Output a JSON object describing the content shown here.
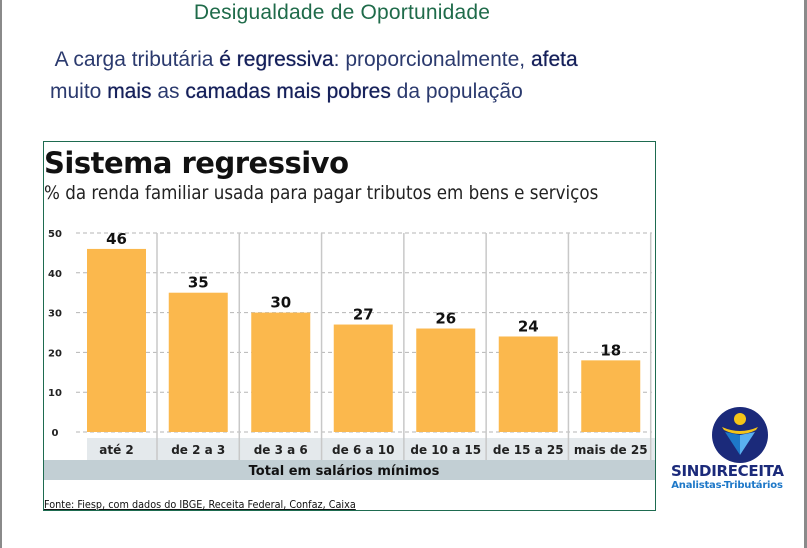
{
  "slide": {
    "title": "Desigualdade de Oportunidade",
    "lead_parts": [
      {
        "text": " A carga tributária ",
        "bold": false
      },
      {
        "text": "é regressiva",
        "bold": true
      },
      {
        "text": ": proporcionalmente, ",
        "bold": false
      },
      {
        "text": "afeta",
        "bold": true
      },
      {
        "text": "\nmuito ",
        "bold": false
      },
      {
        "text": "mais",
        "bold": true
      },
      {
        "text": " as ",
        "bold": false
      },
      {
        "text": "camadas mais pobres",
        "bold": true
      },
      {
        "text": " da população",
        "bold": false
      }
    ]
  },
  "logo": {
    "name": "SINDIRECEITA",
    "tagline": "Analistas-Tributários",
    "colors": {
      "navy": "#1b2a7a",
      "yellow": "#f5c518",
      "blue": "#1e78c8"
    }
  },
  "chart_data": {
    "type": "bar",
    "title": "Sistema regressivo",
    "subtitle": "% da renda familiar usada para pagar tributos em bens e serviços",
    "categories": [
      "até 2",
      "de 2 a 3",
      "de 3 a 6",
      "de 6 a 10",
      "de 10 a 15",
      "de 15 a 25",
      "mais de 25"
    ],
    "values": [
      46,
      35,
      30,
      27,
      26,
      24,
      18
    ],
    "data_labels": [
      "46",
      "35",
      "30",
      "27",
      "26",
      "24",
      "18"
    ],
    "xlabel": "Total em salários mínimos",
    "ylabel": "",
    "ylim": [
      0,
      50
    ],
    "yticks": [
      0,
      10,
      20,
      30,
      40,
      50
    ],
    "grid": true,
    "bar_color": "#fbb84d",
    "source": "Fonte: Fiesp, com dados do IBGE, Receita Federal, Confaz, Caixa"
  }
}
